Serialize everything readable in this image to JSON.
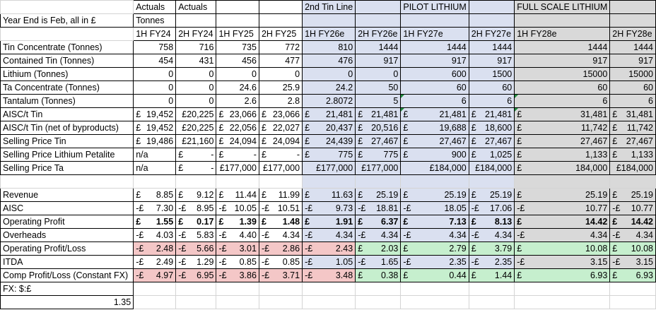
{
  "header": {
    "row1": [
      "",
      "Actuals",
      "Actuals",
      "",
      "",
      "2nd Tin Line",
      "",
      "PILOT  LITHIUM",
      "",
      "FULL SCALE LITHIUM",
      ""
    ],
    "row2": [
      "Year End is Feb, all in £",
      "Tonnes",
      "",
      "",
      "",
      "",
      "",
      "",
      "",
      "",
      ""
    ],
    "row3": [
      "",
      "1H FY24",
      "2H FY24",
      "1H FY25",
      "2H FY25",
      "1H FY26e",
      "2H FY26e",
      "1H FY27e",
      "2H FY27e",
      "1H FY28e",
      "2H FY28e"
    ]
  },
  "tonnage": [
    {
      "label": "Tin Concentrate (Tonnes)",
      "values": [
        "758",
        "716",
        "735",
        "772",
        "810",
        "1444",
        "1444",
        "1444",
        "1444",
        "1444"
      ]
    },
    {
      "label": "Contained Tin (Tonnes)",
      "values": [
        "454",
        "431",
        "456",
        "477",
        "476",
        "917",
        "917",
        "917",
        "917",
        "917"
      ]
    },
    {
      "label": "Lithium (Tonnes)",
      "values": [
        "0",
        "0",
        "0",
        "0",
        "0",
        "0",
        "600",
        "1500",
        "15000",
        "15000"
      ]
    },
    {
      "label": "Ta Concentrate (Tonnes)",
      "values": [
        "0",
        "0",
        "24.6",
        "25.9",
        "24.2",
        "50",
        "60",
        "60",
        "60",
        "60"
      ]
    },
    {
      "label": "Tantalum (Tonnes)",
      "values": [
        "0",
        "0",
        "2.6",
        "2.8",
        "2.8072",
        "5",
        "6",
        "6",
        "6",
        "6"
      ]
    }
  ],
  "pricing": [
    {
      "label": "AISC/t Tin",
      "cells": [
        [
          "£",
          "19,452"
        ],
        [
          "",
          "£20,225"
        ],
        [
          "£",
          "23,066"
        ],
        [
          "£",
          "23,066"
        ],
        [
          "£",
          "21,481"
        ],
        [
          "£",
          "21,481"
        ],
        [
          "£",
          "21,481"
        ],
        [
          "£",
          "21,481"
        ],
        [
          "£",
          "31,481"
        ],
        [
          "£",
          "31,481"
        ]
      ]
    },
    {
      "label": "AISC/t Tin (net of byproducts)",
      "cells": [
        [
          "£",
          "19,452"
        ],
        [
          "",
          "£20,225"
        ],
        [
          "£",
          "22,056"
        ],
        [
          "£",
          "22,027"
        ],
        [
          "£",
          "20,437"
        ],
        [
          "£",
          "20,516"
        ],
        [
          "£",
          "19,688"
        ],
        [
          "£",
          "18,600"
        ],
        [
          "£",
          "11,742"
        ],
        [
          "£",
          "11,742"
        ]
      ]
    },
    {
      "label": "Selling Price Tin",
      "cells": [
        [
          "£",
          "19,486"
        ],
        [
          "",
          "£21,160"
        ],
        [
          "£",
          "24,094"
        ],
        [
          "£",
          "24,094"
        ],
        [
          "£",
          "24,439"
        ],
        [
          "£",
          "27,467"
        ],
        [
          "£",
          "27,467"
        ],
        [
          "£",
          "27,467"
        ],
        [
          "£",
          "27,467"
        ],
        [
          "£",
          "27,467"
        ]
      ]
    },
    {
      "label": "Selling Price Lithium Petalite",
      "cells": [
        [
          "n/a",
          ""
        ],
        [
          "£",
          "-"
        ],
        [
          "£",
          "-"
        ],
        [
          "£",
          "-"
        ],
        [
          "£",
          "775"
        ],
        [
          "£",
          "775"
        ],
        [
          "£",
          "900"
        ],
        [
          "£",
          "1,025"
        ],
        [
          "£",
          "1,133"
        ],
        [
          "£",
          "1,133"
        ]
      ]
    },
    {
      "label": "Selling Price Ta",
      "cells": [
        [
          "n/a",
          ""
        ],
        [
          "£",
          "-"
        ],
        [
          "",
          "£177,000"
        ],
        [
          "",
          "£177,000"
        ],
        [
          "",
          "£177,000"
        ],
        [
          "",
          "£177,000"
        ],
        [
          "",
          "£184,000"
        ],
        [
          "",
          "£184,000"
        ],
        [
          "£",
          "184,000"
        ],
        [
          "",
          "£184,000"
        ]
      ]
    }
  ],
  "pnl": [
    {
      "label": "Revenue",
      "cells": [
        [
          "£",
          "8.85"
        ],
        [
          "£",
          "9.12"
        ],
        [
          "£",
          "11.44"
        ],
        [
          "£",
          "11.99"
        ],
        [
          "£",
          "11.63"
        ],
        [
          "£",
          "25.19"
        ],
        [
          "£",
          "25.19"
        ],
        [
          "£",
          "25.19"
        ],
        [
          "£",
          "25.19"
        ],
        [
          "£",
          "25.19"
        ]
      ]
    },
    {
      "label": "AISC",
      "cells": [
        [
          "-£",
          "7.30"
        ],
        [
          "-£",
          "8.95"
        ],
        [
          "-£",
          "10.05"
        ],
        [
          "-£",
          "10.51"
        ],
        [
          "-£",
          "9.73"
        ],
        [
          "-£",
          "18.81"
        ],
        [
          "-£",
          "18.05"
        ],
        [
          "-£",
          "17.06"
        ],
        [
          "-£",
          "10.77"
        ],
        [
          "-£",
          "10.77"
        ]
      ]
    },
    {
      "label": "Operating Profit",
      "cells": [
        [
          "£",
          "1.55"
        ],
        [
          "£",
          "0.17"
        ],
        [
          "£",
          "1.39"
        ],
        [
          "£",
          "1.48"
        ],
        [
          "£",
          "1.91"
        ],
        [
          "£",
          "6.37"
        ],
        [
          "£",
          "7.13"
        ],
        [
          "£",
          "8.13"
        ],
        [
          "£",
          "14.42"
        ],
        [
          "£",
          "14.42"
        ]
      ]
    },
    {
      "label": "Overheads",
      "cells": [
        [
          "-£",
          "4.03"
        ],
        [
          "-£",
          "5.83"
        ],
        [
          "-£",
          "4.40"
        ],
        [
          "-£",
          "4.34"
        ],
        [
          "-£",
          "4.34"
        ],
        [
          "-£",
          "4.34"
        ],
        [
          "-£",
          "4.34"
        ],
        [
          "-£",
          "4.34"
        ],
        [
          "-£",
          "4.34"
        ],
        [
          "-£",
          "4.34"
        ]
      ]
    },
    {
      "label": "Operating Profit/Loss",
      "cells": [
        [
          "-£",
          "2.48"
        ],
        [
          "-£",
          "5.66"
        ],
        [
          "-£",
          "3.01"
        ],
        [
          "-£",
          "2.86"
        ],
        [
          "-£",
          "2.43"
        ],
        [
          "£",
          "2.03"
        ],
        [
          "£",
          "2.79"
        ],
        [
          "£",
          "3.79"
        ],
        [
          "£",
          "10.08"
        ],
        [
          "£",
          "10.08"
        ]
      ]
    },
    {
      "label": "ITDA",
      "cells": [
        [
          "-£",
          "2.49"
        ],
        [
          "-£",
          "1.29"
        ],
        [
          "-£",
          "0.85"
        ],
        [
          "-£",
          "0.85"
        ],
        [
          "-£",
          "1.05"
        ],
        [
          "-£",
          "1.65"
        ],
        [
          "-£",
          "2.35"
        ],
        [
          "-£",
          "2.35"
        ],
        [
          "-£",
          "3.15"
        ],
        [
          "-£",
          "3.15"
        ]
      ]
    },
    {
      "label": "Comp Profit/Loss (Constant FX)",
      "cells": [
        [
          "-£",
          "4.97"
        ],
        [
          "-£",
          "6.95"
        ],
        [
          "-£",
          "3.86"
        ],
        [
          "-£",
          "3.71"
        ],
        [
          "-£",
          "3.48"
        ],
        [
          "£",
          "0.38"
        ],
        [
          "£",
          "0.44"
        ],
        [
          "£",
          "1.44"
        ],
        [
          "£",
          "6.93"
        ],
        [
          "£",
          "6.93"
        ]
      ]
    }
  ],
  "fx": {
    "label": "FX: $:£",
    "value": "1.35"
  }
}
